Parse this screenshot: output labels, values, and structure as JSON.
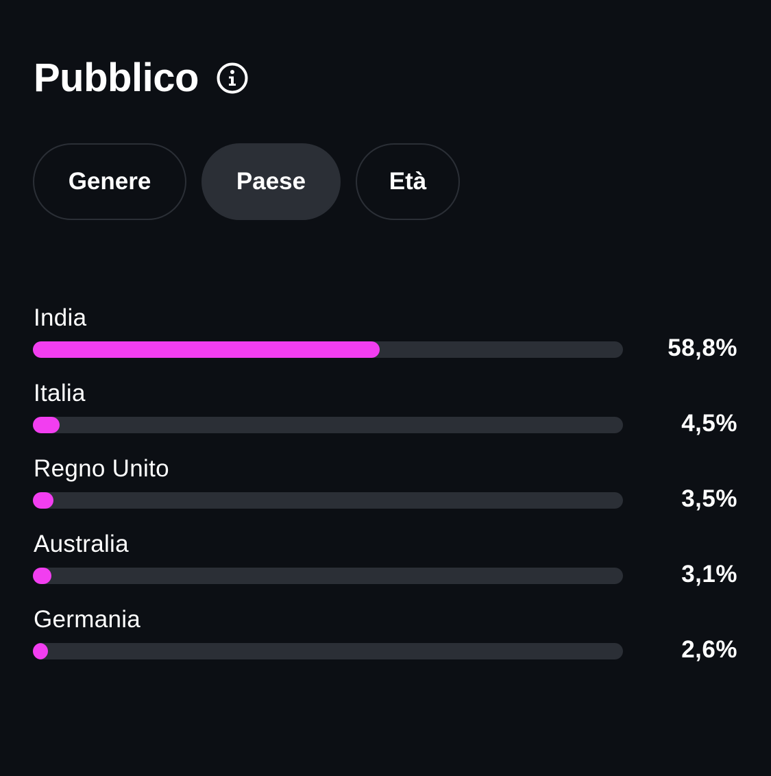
{
  "header": {
    "title": "Pubblico",
    "info_icon": "info-circle-icon"
  },
  "tabs": [
    {
      "label": "Genere",
      "active": false
    },
    {
      "label": "Paese",
      "active": true
    },
    {
      "label": "Età",
      "active": false
    }
  ],
  "colors": {
    "background": "#0c0f14",
    "bar_fill": "#f23ef0",
    "bar_track": "#2b2f36",
    "text": "#ffffff"
  },
  "countries": [
    {
      "name": "India",
      "percent_label": "58,8%",
      "percent": 58.8
    },
    {
      "name": "Italia",
      "percent_label": "4,5%",
      "percent": 4.5
    },
    {
      "name": "Regno Unito",
      "percent_label": "3,5%",
      "percent": 3.5
    },
    {
      "name": "Australia",
      "percent_label": "3,1%",
      "percent": 3.1
    },
    {
      "name": "Germania",
      "percent_label": "2,6%",
      "percent": 2.6
    }
  ]
}
